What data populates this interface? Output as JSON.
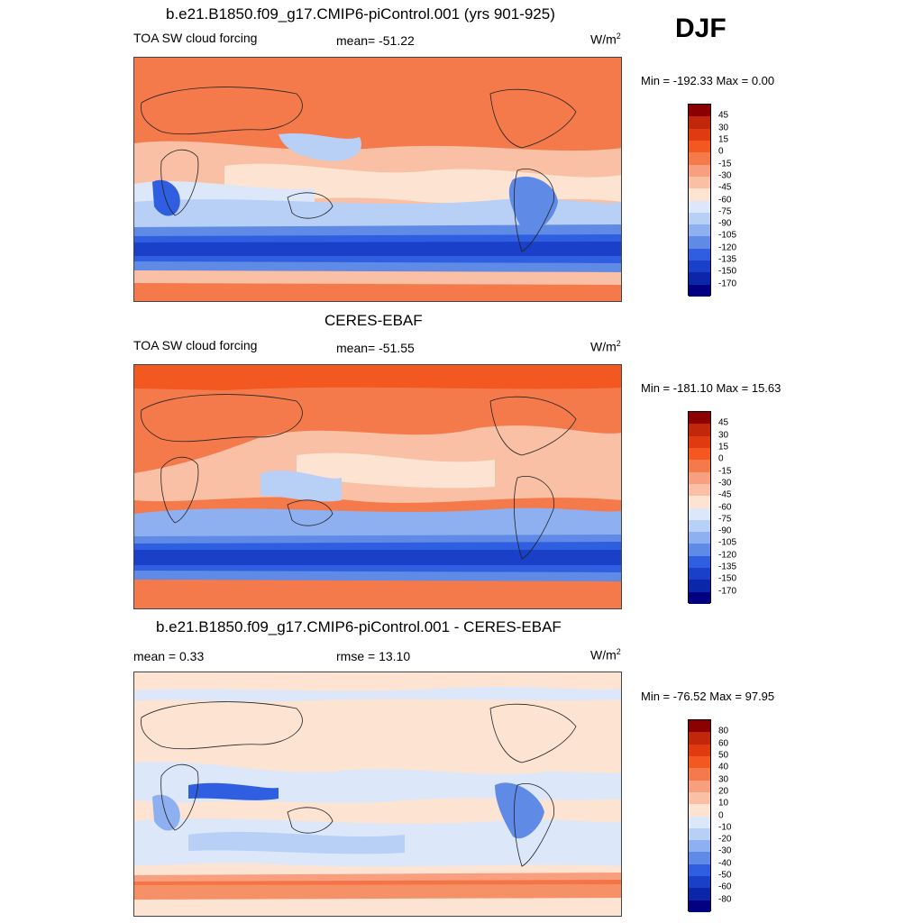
{
  "season": "DJF",
  "panels": [
    {
      "title": "b.e21.B1850.f09_g17.CMIP6-piControl.001 (yrs 901-925)",
      "left_label": "TOA SW cloud forcing",
      "center_label": "mean= -51.22",
      "units": "W/m",
      "units_exp": "2",
      "minmax": "Min = -192.33 Max =   0.00",
      "colorbar": {
        "labels": [
          "45",
          "30",
          "15",
          "0",
          "-15",
          "-30",
          "-45",
          "-60",
          "-75",
          "-90",
          "-105",
          "-120",
          "-135",
          "-150",
          "-170"
        ],
        "colors": [
          "#8b0000",
          "#c1270b",
          "#e03a10",
          "#f2581f",
          "#f47a4c",
          "#f79f7f",
          "#fac0a5",
          "#fde3d1",
          "#dce8fa",
          "#b8cff6",
          "#8fb0f0",
          "#5f8ae6",
          "#2f5fe0",
          "#1a3fc8",
          "#0b26a8",
          "#000080"
        ]
      }
    },
    {
      "title": "CERES-EBAF",
      "left_label": "TOA SW cloud forcing",
      "center_label": "mean= -51.55",
      "units": "W/m",
      "units_exp": "2",
      "minmax": "Min = -181.10 Max =  15.63",
      "colorbar": {
        "labels": [
          "45",
          "30",
          "15",
          "0",
          "-15",
          "-30",
          "-45",
          "-60",
          "-75",
          "-90",
          "-105",
          "-120",
          "-135",
          "-150",
          "-170"
        ],
        "colors": [
          "#8b0000",
          "#c1270b",
          "#e03a10",
          "#f2581f",
          "#f47a4c",
          "#f79f7f",
          "#fac0a5",
          "#fde3d1",
          "#dce8fa",
          "#b8cff6",
          "#8fb0f0",
          "#5f8ae6",
          "#2f5fe0",
          "#1a3fc8",
          "#0b26a8",
          "#000080"
        ]
      }
    },
    {
      "title": "b.e21.B1850.f09_g17.CMIP6-piControl.001 - CERES-EBAF",
      "left_label": "mean =   0.33",
      "center_label": "rmse =  13.10",
      "units": "W/m",
      "units_exp": "2",
      "minmax": "Min = -76.52 Max =  97.95",
      "colorbar": {
        "labels": [
          "80",
          "60",
          "50",
          "40",
          "30",
          "20",
          "10",
          "0",
          "-10",
          "-20",
          "-30",
          "-40",
          "-50",
          "-60",
          "-80"
        ],
        "colors": [
          "#8b0000",
          "#c1270b",
          "#e03a10",
          "#f2581f",
          "#f47a4c",
          "#f79f7f",
          "#fac0a5",
          "#fde3d1",
          "#dce8fa",
          "#b8cff6",
          "#8fb0f0",
          "#5f8ae6",
          "#2f5fe0",
          "#1a3fc8",
          "#0b26a8",
          "#000080"
        ]
      }
    }
  ]
}
